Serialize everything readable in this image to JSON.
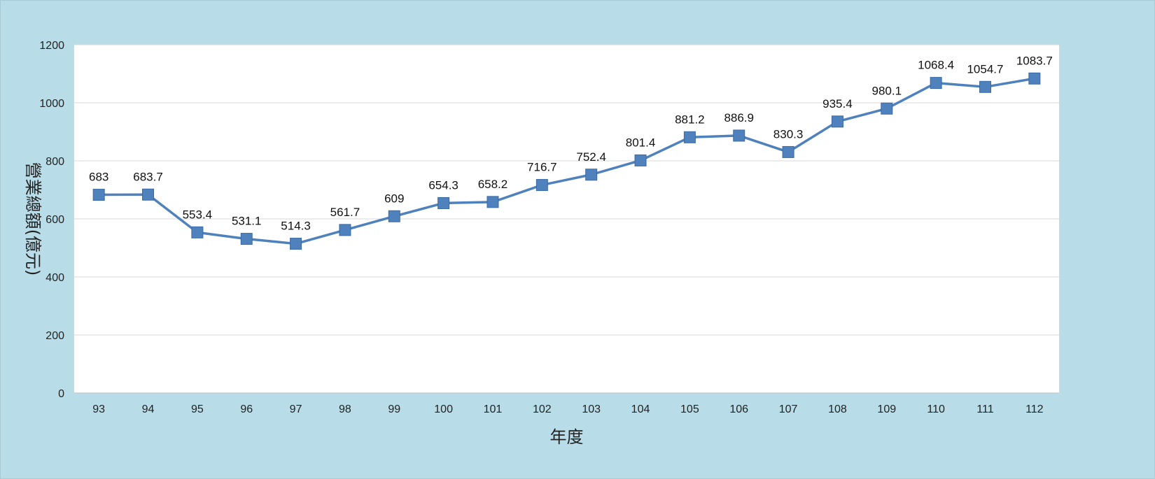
{
  "chart_data": {
    "type": "line",
    "xlabel": "年度",
    "ylabel": "營業總額(億元)",
    "categories": [
      "93",
      "94",
      "95",
      "96",
      "97",
      "98",
      "99",
      "100",
      "101",
      "102",
      "103",
      "104",
      "105",
      "106",
      "107",
      "108",
      "109",
      "110",
      "111",
      "112"
    ],
    "series": [
      {
        "values": [
          683,
          683.7,
          553.4,
          531.1,
          514.3,
          561.7,
          609,
          654.3,
          658.2,
          716.7,
          752.4,
          801.4,
          881.2,
          886.9,
          830.3,
          935.4,
          980.1,
          1068.4,
          1054.7,
          1083.7
        ],
        "labels": [
          "683",
          "683.7",
          "553.4",
          "531.1",
          "514.3",
          "561.7",
          "609",
          "654.3",
          "658.2",
          "716.7",
          "752.4",
          "801.4",
          "881.2",
          "886.9",
          "830.3",
          "935.4",
          "980.1",
          "1068.4",
          "1054.7",
          "1083.7"
        ],
        "color": "#4f81bd",
        "marker": "square"
      }
    ],
    "ylim": [
      0,
      1200
    ],
    "yticks": [
      "0",
      "200",
      "400",
      "600",
      "800",
      "1000",
      "1200"
    ],
    "grid": true,
    "legend": "none",
    "background": "#b9dde8",
    "plot_background": "#ffffff",
    "gridline_color": "#d9d9d9"
  }
}
